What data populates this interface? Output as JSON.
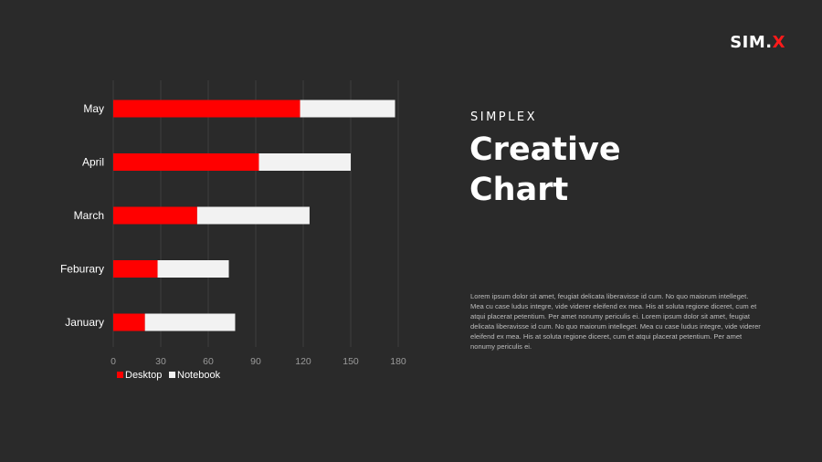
{
  "logo": {
    "text": "SIM",
    "accent": "X",
    "separator": "."
  },
  "heading": {
    "kicker": "SIMPLEX",
    "title_line1": "Creative",
    "title_line2": "Chart"
  },
  "body": "Lorem ipsum dolor sit amet, feugiat delicata liberavisse id cum. No quo maiorum intelleget. Mea cu case ludus integre, vide viderer eleifend ex mea. His at soluta regione diceret, cum et atqui placerat petentium. Per amet nonumy periculis ei. Lorem ipsum dolor sit amet, feugiat delicata liberavisse id cum. No quo maiorum intelleget. Mea cu case ludus integre, vide viderer eleifend ex mea. His at soluta regione diceret, cum et atqui placerat petentium. Per amet nonumy periculis ei.",
  "colors": {
    "background": "#2a2a2a",
    "accent": "#ff0000",
    "desktop": "#ff0000",
    "notebook": "#f2f2f2",
    "text": "#ffffff",
    "muted": "#9a9a9a"
  },
  "chart_data": {
    "type": "bar",
    "orientation": "horizontal",
    "stacked": true,
    "categories": [
      "May",
      "April",
      "March",
      "Feburary",
      "January"
    ],
    "series": [
      {
        "name": "Desktop",
        "color": "#ff0000",
        "values": [
          118,
          92,
          53,
          28,
          20
        ]
      },
      {
        "name": "Notebook",
        "color": "#f2f2f2",
        "values": [
          60,
          58,
          71,
          45,
          57
        ]
      }
    ],
    "xlim": [
      0,
      180
    ],
    "xticks": [
      0,
      30,
      60,
      90,
      120,
      150,
      180
    ],
    "grid": true,
    "legend": "bottom-left"
  }
}
